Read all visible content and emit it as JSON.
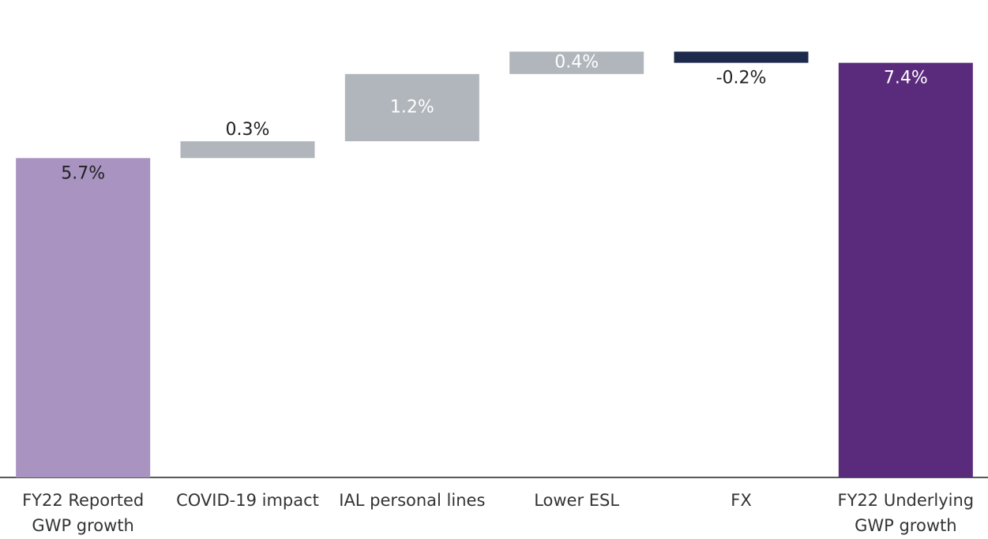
{
  "chart_data": {
    "type": "waterfall",
    "categories": [
      "FY22 Reported GWP growth",
      "COVID-19 impact",
      "IAL personal lines",
      "Lower ESL",
      "FX",
      "FY22 Underlying GWP growth"
    ],
    "values": [
      5.7,
      0.3,
      1.2,
      0.4,
      -0.2,
      7.4
    ],
    "value_labels": [
      "5.7%",
      "0.3%",
      "1.2%",
      "0.4%",
      "-0.2%",
      "7.4%"
    ],
    "measure": [
      "absolute",
      "relative",
      "relative",
      "relative",
      "relative",
      "total"
    ],
    "colors": [
      "#a993c0",
      "#b1b6bc",
      "#b1b6bc",
      "#b1b6bc",
      "#1d2a4b",
      "#5a2a7c"
    ],
    "label_colors": [
      "#222222",
      "#222222",
      "#ffffff",
      "#ffffff",
      "#222222",
      "#ffffff"
    ],
    "ylim": [
      0,
      8
    ]
  }
}
